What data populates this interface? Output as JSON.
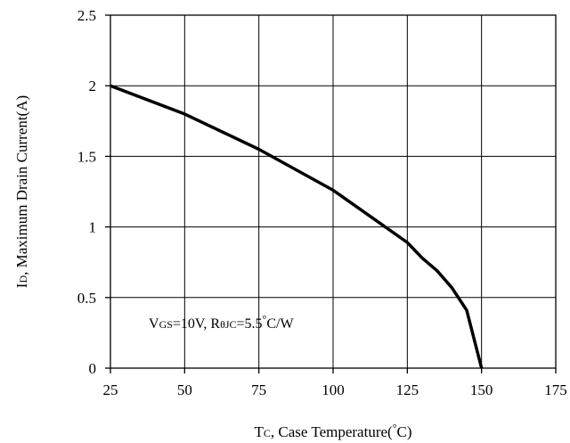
{
  "chart_data": {
    "type": "line",
    "xlabel_main": "T",
    "xlabel_sub": "C",
    "xlabel_rest": ", Case Temperature(",
    "xlabel_deg": "°",
    "xlabel_end": "C)",
    "ylabel_main": "I",
    "ylabel_sub": "D",
    "ylabel_rest": ", Maximum Drain Current(A)",
    "xlim": [
      25,
      175
    ],
    "ylim": [
      0,
      2.5
    ],
    "xticks": [
      25,
      50,
      75,
      100,
      125,
      150,
      175
    ],
    "yticks": [
      0,
      0.5,
      1,
      1.5,
      2,
      2.5
    ],
    "grid": true,
    "annotation": {
      "a": "V",
      "b": "GS",
      "c": "=10V, R",
      "d": "θJC",
      "e": "=5.5",
      "f": "°",
      "g": "C/W"
    },
    "series": [
      {
        "x": [
          25,
          50,
          75,
          100,
          125,
          130,
          135,
          140,
          145,
          150
        ],
        "y": [
          2.0,
          1.8,
          1.55,
          1.26,
          0.89,
          0.78,
          0.69,
          0.57,
          0.41,
          0.0
        ]
      }
    ],
    "line_color": "#000000"
  }
}
